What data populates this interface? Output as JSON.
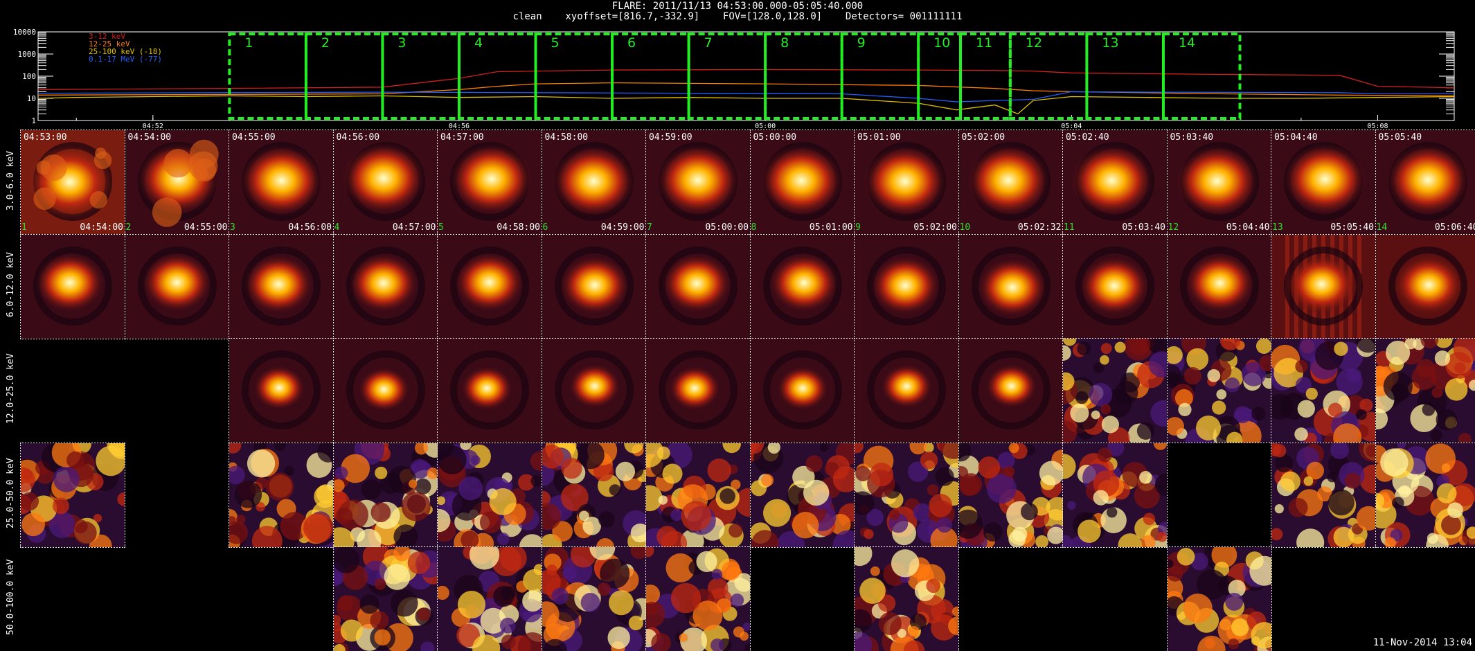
{
  "header": {
    "line1": "FLARE: 2011/11/13 04:53:00.000-05:05:40.000",
    "line2": "clean    xyoffset=[816.7,-332.9]    FOV=[128.0,128.0]    Detectors= 001111111"
  },
  "chart_data": [
    {
      "type": "line",
      "yscale": "log",
      "ylim": [
        1,
        10000
      ],
      "ytick_labels": [
        "10000",
        "1000",
        "100",
        "10",
        "1"
      ],
      "xtick_labels": [
        "04:52",
        "04:56",
        "05:00",
        "05:04",
        "05:08"
      ],
      "xtick_minutes": [
        -1,
        3,
        7,
        11,
        15
      ],
      "xlim_minutes": [
        -2.5,
        16.0
      ],
      "series": [
        {
          "name": "3-12 keV",
          "color": "#d02020",
          "x": [
            -2.5,
            0,
            2,
            3,
            3.5,
            5,
            7,
            9,
            10,
            10.5,
            11,
            13,
            14.5,
            15,
            16
          ],
          "y": [
            25,
            28,
            32,
            80,
            160,
            190,
            200,
            190,
            180,
            170,
            140,
            120,
            110,
            35,
            30
          ]
        },
        {
          "name": "12-25 keV",
          "color": "#ff7f00",
          "x": [
            -2.5,
            0,
            2,
            3,
            3.5,
            4,
            5,
            7,
            9,
            10,
            10.5,
            11,
            13,
            14.5,
            16
          ],
          "y": [
            14,
            15,
            16,
            25,
            35,
            45,
            50,
            45,
            38,
            28,
            22,
            20,
            16,
            14,
            13
          ]
        },
        {
          "name": "25-100 keV (-18)",
          "color": "#e0c000",
          "x": [
            -2.5,
            -2,
            -1,
            0,
            1,
            2,
            3,
            4,
            5,
            6,
            7,
            8,
            9,
            9.5,
            10,
            10.3,
            10.5,
            11,
            12,
            13,
            14,
            15,
            16
          ],
          "y": [
            10,
            11,
            12,
            13,
            12,
            13,
            11,
            12,
            10,
            11,
            10,
            10,
            6,
            3,
            5,
            2,
            8,
            12,
            11,
            10,
            10,
            11,
            12
          ]
        },
        {
          "name": "0.1-17 MeV (-77)",
          "color": "#2060ff",
          "x": [
            -2.5,
            0,
            2,
            4,
            6,
            8,
            9,
            9.5,
            10,
            10.5,
            11,
            12,
            14.5,
            15,
            16
          ],
          "y": [
            17,
            18,
            19,
            18,
            17,
            16,
            10,
            7,
            8,
            9,
            20,
            19,
            18,
            16,
            16
          ]
        }
      ],
      "intervals": {
        "labels": [
          "1",
          "2",
          "3",
          "4",
          "5",
          "6",
          "7",
          "8",
          "9",
          "10",
          "11",
          "12",
          "13",
          "14"
        ],
        "boundaries_minutes": [
          0,
          1,
          2,
          3,
          4,
          5,
          6,
          7,
          8,
          9,
          9.55,
          10.2,
          11.2,
          12.2,
          13.2
        ]
      }
    },
    {
      "type": "heatmap",
      "row_labels": [
        "3.0-6.0 keV",
        "6.0-12.0 keV",
        "12.0-25.0 keV",
        "25.0-50.0 keV",
        "50.0-100.0 keV"
      ],
      "interval_start_times": [
        "04:53:00",
        "04:54:00",
        "04:55:00",
        "04:56:00",
        "04:57:00",
        "04:58:00",
        "04:59:00",
        "05:00:00",
        "05:01:00",
        "05:02:00",
        "05:02:40",
        "05:03:40",
        "05:04:40",
        "05:05:40"
      ],
      "interval_end_times": [
        "04:54:00",
        "04:55:00",
        "04:56:00",
        "04:57:00",
        "04:58:00",
        "04:59:00",
        "05:00:00",
        "05:01:00",
        "05:02:00",
        "05:02:32",
        "05:03:40",
        "05:04:40",
        "05:05:40",
        "05:06:40"
      ],
      "interval_numbers": [
        "1",
        "2",
        "3",
        "4",
        "5",
        "6",
        "7",
        "8",
        "9",
        "10",
        "11",
        "12",
        "13",
        "14"
      ],
      "images_present": [
        [
          1,
          1,
          1,
          1,
          1,
          1,
          1,
          1,
          1,
          1,
          1,
          1,
          1,
          1
        ],
        [
          1,
          1,
          1,
          1,
          1,
          1,
          1,
          1,
          1,
          1,
          1,
          1,
          1,
          1
        ],
        [
          0,
          0,
          1,
          1,
          1,
          1,
          1,
          1,
          1,
          1,
          1,
          1,
          1,
          1
        ],
        [
          1,
          0,
          1,
          1,
          1,
          1,
          1,
          1,
          1,
          1,
          1,
          0,
          1,
          1
        ],
        [
          0,
          0,
          0,
          1,
          1,
          1,
          1,
          0,
          1,
          0,
          0,
          1,
          0,
          0
        ]
      ]
    }
  ],
  "footer": {
    "date_stamp": "11-Nov-2014 13:04"
  }
}
